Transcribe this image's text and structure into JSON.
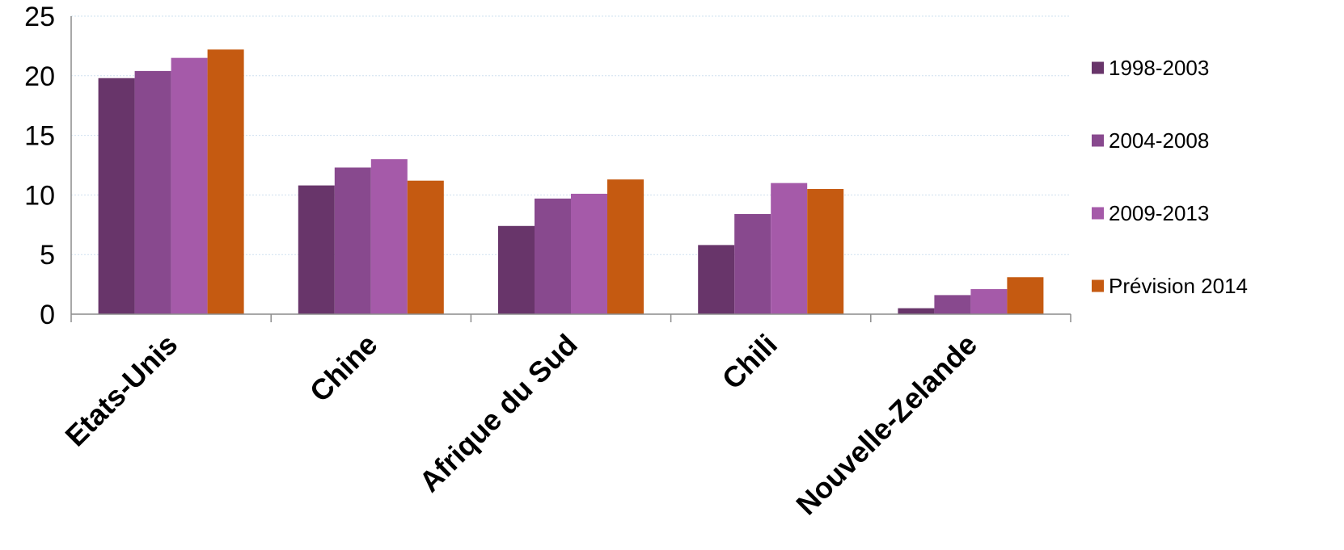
{
  "chart_data": {
    "type": "bar",
    "title": "",
    "xlabel": "",
    "ylabel": "",
    "categories": [
      "Etats-Unis",
      "Chine",
      "Afrique du Sud",
      "Chili",
      "Nouvelle-Zelande"
    ],
    "series": [
      {
        "name": "1998-2003",
        "color": "#68356a",
        "values": [
          19.8,
          10.8,
          7.4,
          5.8,
          0.5
        ]
      },
      {
        "name": "2004-2008",
        "color": "#88498e",
        "values": [
          20.4,
          12.3,
          9.7,
          8.4,
          1.6
        ]
      },
      {
        "name": "2009-2013",
        "color": "#a55aa9",
        "values": [
          21.5,
          13.0,
          10.1,
          11.0,
          2.1
        ]
      },
      {
        "name": "Prévision 2014",
        "color": "#c55a11",
        "values": [
          22.2,
          11.2,
          11.3,
          10.5,
          3.1
        ]
      }
    ],
    "ylim": [
      0,
      25
    ],
    "yticks": [
      "0",
      "5",
      "10",
      "15",
      "20",
      "25"
    ],
    "grid": true,
    "legend_position": "right"
  }
}
